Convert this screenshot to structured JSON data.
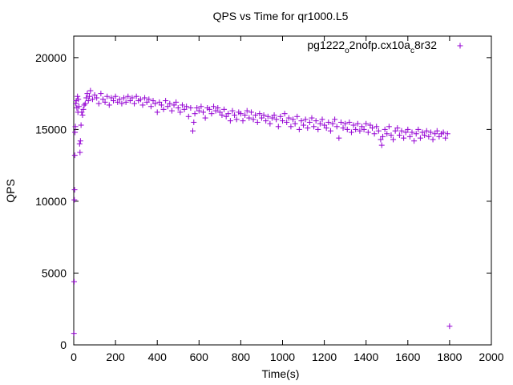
{
  "chart_data": {
    "type": "scatter",
    "title": "QPS vs Time for qr1000.L5",
    "xlabel": "Time(s)",
    "ylabel": "QPS",
    "xlim": [
      0,
      2000
    ],
    "ylim": [
      0,
      21500
    ],
    "xticks": [
      "0",
      "200",
      "400",
      "600",
      "800",
      "1000",
      "1200",
      "1400",
      "1600",
      "1800",
      "2000"
    ],
    "yticks": [
      "0",
      "5000",
      "10000",
      "15000",
      "20000"
    ],
    "grid": false,
    "legend_position": "top-right",
    "marker": "+",
    "series": [
      {
        "name": "pg1222_o2nofp.cx10a_c8r32",
        "legend_parts": [
          "pg1222",
          "o",
          "2nofp.cx10a",
          "c",
          "8r32"
        ],
        "color": "#9400d3",
        "points": [
          [
            1,
            800
          ],
          [
            2,
            4400
          ],
          [
            3,
            10100
          ],
          [
            4,
            10800
          ],
          [
            5,
            13200
          ],
          [
            6,
            14800
          ],
          [
            8,
            15200
          ],
          [
            10,
            16800
          ],
          [
            12,
            17000
          ],
          [
            15,
            16500
          ],
          [
            18,
            17300
          ],
          [
            20,
            16200
          ],
          [
            22,
            17100
          ],
          [
            25,
            16600
          ],
          [
            28,
            14000
          ],
          [
            30,
            13400
          ],
          [
            32,
            14200
          ],
          [
            35,
            15300
          ],
          [
            38,
            16200
          ],
          [
            42,
            16000
          ],
          [
            46,
            16400
          ],
          [
            50,
            16700
          ],
          [
            55,
            16800
          ],
          [
            60,
            17200
          ],
          [
            65,
            17500
          ],
          [
            70,
            17000
          ],
          [
            75,
            17300
          ],
          [
            80,
            17700
          ],
          [
            90,
            17100
          ],
          [
            100,
            17400
          ],
          [
            110,
            17200
          ],
          [
            120,
            16800
          ],
          [
            130,
            17500
          ],
          [
            140,
            17100
          ],
          [
            150,
            16900
          ],
          [
            160,
            17300
          ],
          [
            170,
            16700
          ],
          [
            180,
            17200
          ],
          [
            190,
            17000
          ],
          [
            200,
            17300
          ],
          [
            210,
            16900
          ],
          [
            220,
            17100
          ],
          [
            230,
            16800
          ],
          [
            240,
            17200
          ],
          [
            250,
            16900
          ],
          [
            260,
            17300
          ],
          [
            270,
            17000
          ],
          [
            280,
            17200
          ],
          [
            290,
            16800
          ],
          [
            300,
            17300
          ],
          [
            310,
            17000
          ],
          [
            320,
            17100
          ],
          [
            330,
            16700
          ],
          [
            340,
            17200
          ],
          [
            350,
            16900
          ],
          [
            360,
            17100
          ],
          [
            370,
            16600
          ],
          [
            380,
            17000
          ],
          [
            390,
            16800
          ],
          [
            400,
            16200
          ],
          [
            410,
            16900
          ],
          [
            420,
            16700
          ],
          [
            430,
            16400
          ],
          [
            440,
            17000
          ],
          [
            450,
            16600
          ],
          [
            460,
            16800
          ],
          [
            470,
            16300
          ],
          [
            480,
            16700
          ],
          [
            490,
            16900
          ],
          [
            500,
            16500
          ],
          [
            510,
            16200
          ],
          [
            520,
            16700
          ],
          [
            530,
            16400
          ],
          [
            540,
            16600
          ],
          [
            550,
            15900
          ],
          [
            560,
            16500
          ],
          [
            570,
            14900
          ],
          [
            575,
            15500
          ],
          [
            580,
            16100
          ],
          [
            590,
            16500
          ],
          [
            600,
            16300
          ],
          [
            610,
            16600
          ],
          [
            620,
            16200
          ],
          [
            630,
            15800
          ],
          [
            640,
            16500
          ],
          [
            650,
            16400
          ],
          [
            660,
            16100
          ],
          [
            670,
            16600
          ],
          [
            680,
            16300
          ],
          [
            690,
            16500
          ],
          [
            700,
            16200
          ],
          [
            710,
            16000
          ],
          [
            720,
            16400
          ],
          [
            730,
            15900
          ],
          [
            740,
            16100
          ],
          [
            750,
            15600
          ],
          [
            760,
            16300
          ],
          [
            770,
            16000
          ],
          [
            780,
            15700
          ],
          [
            790,
            16200
          ],
          [
            800,
            16100
          ],
          [
            810,
            15600
          ],
          [
            820,
            16000
          ],
          [
            830,
            16300
          ],
          [
            840,
            15800
          ],
          [
            850,
            16200
          ],
          [
            860,
            15700
          ],
          [
            870,
            16000
          ],
          [
            880,
            15500
          ],
          [
            890,
            16100
          ],
          [
            900,
            15800
          ],
          [
            910,
            16000
          ],
          [
            920,
            15600
          ],
          [
            930,
            15900
          ],
          [
            940,
            15400
          ],
          [
            950,
            15800
          ],
          [
            960,
            16000
          ],
          [
            970,
            15700
          ],
          [
            980,
            15200
          ],
          [
            990,
            15900
          ],
          [
            1000,
            15600
          ],
          [
            1010,
            16100
          ],
          [
            1020,
            15500
          ],
          [
            1030,
            15800
          ],
          [
            1040,
            15200
          ],
          [
            1050,
            15700
          ],
          [
            1060,
            15400
          ],
          [
            1070,
            15900
          ],
          [
            1080,
            15000
          ],
          [
            1090,
            15600
          ],
          [
            1100,
            15300
          ],
          [
            1110,
            15700
          ],
          [
            1120,
            15100
          ],
          [
            1130,
            15500
          ],
          [
            1140,
            15800
          ],
          [
            1150,
            15200
          ],
          [
            1160,
            15600
          ],
          [
            1170,
            15000
          ],
          [
            1180,
            15400
          ],
          [
            1190,
            15700
          ],
          [
            1200,
            15300
          ],
          [
            1210,
            15100
          ],
          [
            1220,
            15500
          ],
          [
            1230,
            14900
          ],
          [
            1240,
            15400
          ],
          [
            1250,
            15700
          ],
          [
            1260,
            15200
          ],
          [
            1270,
            14400
          ],
          [
            1280,
            15500
          ],
          [
            1290,
            15100
          ],
          [
            1300,
            15400
          ],
          [
            1310,
            15000
          ],
          [
            1320,
            15500
          ],
          [
            1330,
            14800
          ],
          [
            1340,
            15300
          ],
          [
            1350,
            15000
          ],
          [
            1360,
            15400
          ],
          [
            1370,
            14900
          ],
          [
            1380,
            15200
          ],
          [
            1390,
            15000
          ],
          [
            1400,
            15400
          ],
          [
            1410,
            14800
          ],
          [
            1420,
            15300
          ],
          [
            1430,
            15100
          ],
          [
            1440,
            14700
          ],
          [
            1450,
            15200
          ],
          [
            1460,
            14900
          ],
          [
            1470,
            14300
          ],
          [
            1475,
            13900
          ],
          [
            1480,
            14500
          ],
          [
            1490,
            15000
          ],
          [
            1500,
            14700
          ],
          [
            1510,
            15200
          ],
          [
            1520,
            14600
          ],
          [
            1530,
            14300
          ],
          [
            1540,
            14900
          ],
          [
            1550,
            15100
          ],
          [
            1560,
            14600
          ],
          [
            1570,
            14900
          ],
          [
            1580,
            14400
          ],
          [
            1590,
            14800
          ],
          [
            1600,
            15000
          ],
          [
            1610,
            14500
          ],
          [
            1620,
            14800
          ],
          [
            1630,
            14200
          ],
          [
            1640,
            14700
          ],
          [
            1650,
            15000
          ],
          [
            1660,
            14400
          ],
          [
            1670,
            14800
          ],
          [
            1680,
            14600
          ],
          [
            1690,
            14900
          ],
          [
            1700,
            14500
          ],
          [
            1710,
            14800
          ],
          [
            1720,
            14300
          ],
          [
            1730,
            14700
          ],
          [
            1740,
            14900
          ],
          [
            1750,
            14500
          ],
          [
            1760,
            14700
          ],
          [
            1770,
            14800
          ],
          [
            1780,
            14400
          ],
          [
            1790,
            14700
          ],
          [
            1800,
            1300
          ]
        ]
      }
    ]
  }
}
